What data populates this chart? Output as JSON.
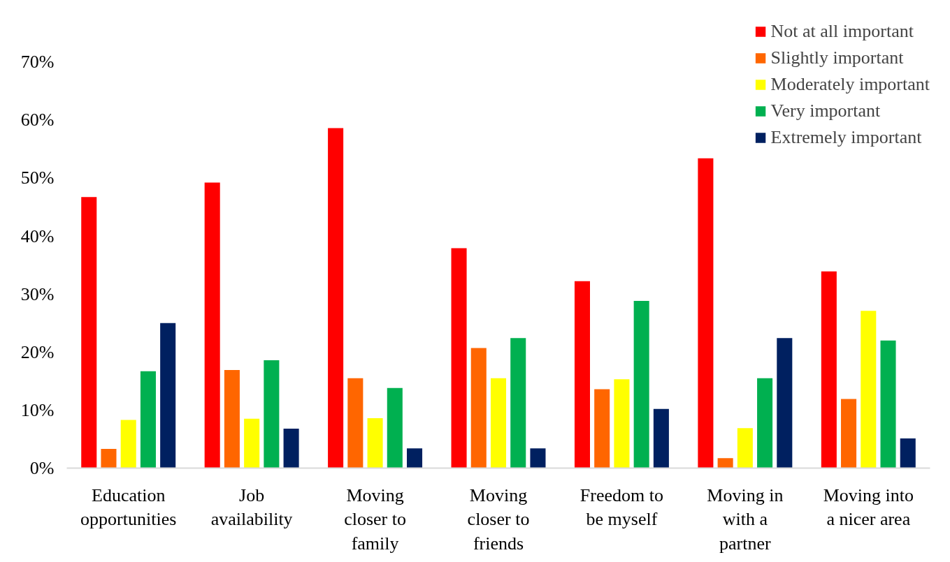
{
  "chart_data": {
    "type": "bar",
    "categories": [
      "Education opportunities",
      "Job availability",
      "Moving closer to family",
      "Moving closer to friends",
      "Freedom to be myself",
      "Moving in with a partner",
      "Moving into a nicer area"
    ],
    "series": [
      {
        "name": "Not at all important",
        "color": "#ff0000",
        "values": [
          46.7,
          49.2,
          58.6,
          37.9,
          32.2,
          53.4,
          33.9
        ]
      },
      {
        "name": "Slightly important",
        "color": "#ff6600",
        "values": [
          3.3,
          16.9,
          15.5,
          20.7,
          13.6,
          1.7,
          11.9
        ]
      },
      {
        "name": "Moderately important",
        "color": "#ffff00",
        "values": [
          8.3,
          8.5,
          8.6,
          15.5,
          15.3,
          6.9,
          27.1
        ]
      },
      {
        "name": "Very important",
        "color": "#00b050",
        "values": [
          16.7,
          18.6,
          13.8,
          22.4,
          28.8,
          15.5,
          22.0
        ]
      },
      {
        "name": "Extremely important",
        "color": "#002060",
        "values": [
          25.0,
          6.8,
          3.4,
          3.4,
          10.2,
          22.4,
          5.1
        ]
      }
    ],
    "ylim": [
      0,
      77
    ],
    "yticks": [
      {
        "value": 0,
        "label": "0%"
      },
      {
        "value": 10,
        "label": "10%"
      },
      {
        "value": 20,
        "label": "20%"
      },
      {
        "value": 30,
        "label": "30%"
      },
      {
        "value": 40,
        "label": "40%"
      },
      {
        "value": 50,
        "label": "50%"
      },
      {
        "value": 60,
        "label": "60%"
      },
      {
        "value": 70,
        "label": "70%"
      }
    ],
    "grid": false,
    "legend": "top right"
  }
}
